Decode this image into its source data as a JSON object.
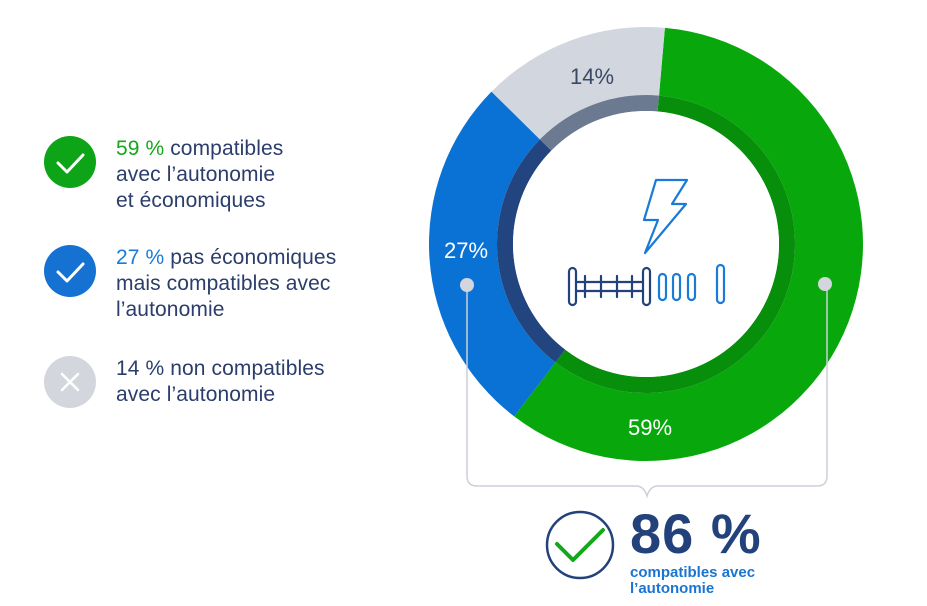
{
  "legend": [
    {
      "pct": "59 %",
      "text_line1": " compatibles",
      "text_line2": "avec l’autonomie",
      "text_line3": "et économiques",
      "pct_color": "#12a81a",
      "icon": "check-icon",
      "icon_bg": "#0ea417"
    },
    {
      "pct": "27 %",
      "text_line1": " pas économiques",
      "text_line2": "mais compatibles avec",
      "text_line3": "l’autonomie",
      "pct_color": "#1a7ad8",
      "icon": "check-icon",
      "icon_bg": "#1572d3"
    },
    {
      "pct": "14 %",
      "text_line1": " non compatibles",
      "text_line2": "avec l’autonomie",
      "pct_color": "#2b3d6b",
      "icon": "close-icon",
      "icon_bg": "#d3d6dc"
    }
  ],
  "chart_data": {
    "type": "pie",
    "variant": "donut",
    "title": "",
    "categories": [
      "compatibles avec l’autonomie et économiques",
      "pas économiques mais compatibles avec l’autonomie",
      "non compatibles avec l’autonomie"
    ],
    "values": [
      59,
      27,
      14
    ],
    "labels": [
      "59%",
      "27%",
      "14%"
    ],
    "colors": [
      "#08a80c",
      "#0a72d4",
      "#d2d6de"
    ],
    "inner_ring_colors": [
      "#078e0a",
      "#23457f",
      "#6b7a91"
    ],
    "annotation": {
      "bracket_covers": [
        "59%",
        "27%"
      ],
      "total": "86 %",
      "total_label": "compatibles avec l’autonomie"
    }
  },
  "center_icon": "electric-gearbox-icon",
  "total": {
    "value": "86 %",
    "label_line1": "compatibles avec",
    "label_line2": "l’autonomie",
    "icon": "check-circle-icon"
  }
}
